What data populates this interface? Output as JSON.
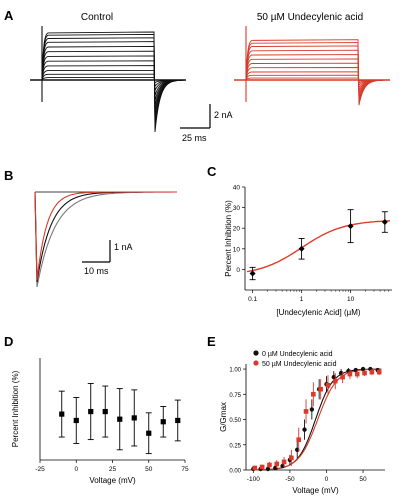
{
  "colors": {
    "control": "#111111",
    "drug": "#d93a2b",
    "fit": "#e03a2a",
    "gray": "#7a7a7a"
  },
  "panels": {
    "A": {
      "letter": "A",
      "control_label": "Control",
      "drug_label": "50 µM Undecylenic acid",
      "scale_y": "2 nA",
      "scale_x": "25 ms",
      "steady_levels_norm": [
        0.05,
        0.12,
        0.2,
        0.3,
        0.4,
        0.5,
        0.6,
        0.7,
        0.8,
        0.88,
        0.95,
        1.0
      ],
      "drug_levels_norm": [
        0.04,
        0.1,
        0.17,
        0.26,
        0.35,
        0.44,
        0.53,
        0.62,
        0.71,
        0.78,
        0.84
      ]
    },
    "B": {
      "letter": "B",
      "scale_y": "1 nA",
      "scale_x": "10 ms"
    },
    "C": {
      "letter": "C",
      "chart_data": {
        "type": "scatter",
        "xlabel": "[Undecylenic Acid] (µM)",
        "ylabel": "Percent Inhibition (%)",
        "xscale": "log",
        "xticks": [
          0.1,
          1,
          10
        ],
        "xtick_labels": [
          "0.1",
          "1",
          "10"
        ],
        "ylim": [
          -10,
          40
        ],
        "yticks": [
          0,
          10,
          20,
          30,
          40
        ],
        "points": [
          {
            "x": 0.1,
            "y": -2,
            "err": 3
          },
          {
            "x": 1,
            "y": 10,
            "err": 5
          },
          {
            "x": 10,
            "y": 21,
            "err": 8
          },
          {
            "x": 50,
            "y": 23,
            "err": 5
          }
        ],
        "fit": {
          "bottom": -3,
          "top": 24,
          "ic50": 1.0,
          "hill": 1
        }
      }
    },
    "D": {
      "letter": "D",
      "chart_data": {
        "type": "scatter",
        "xlabel": "Voltage (mV)",
        "ylabel": "Percent Inhibition (%)",
        "xlim": [
          -25,
          75
        ],
        "xticks": [
          -25,
          0,
          25,
          50,
          75
        ],
        "ylim": [
          0,
          40
        ],
        "points": [
          {
            "x": -10,
            "y": 18,
            "err": 9
          },
          {
            "x": 0,
            "y": 15.5,
            "err": 9
          },
          {
            "x": 10,
            "y": 19,
            "err": 11
          },
          {
            "x": 20,
            "y": 19,
            "err": 10
          },
          {
            "x": 30,
            "y": 16,
            "err": 12
          },
          {
            "x": 40,
            "y": 16.5,
            "err": 11
          },
          {
            "x": 50,
            "y": 10.5,
            "err": 8
          },
          {
            "x": 60,
            "y": 15,
            "err": 6
          },
          {
            "x": 70,
            "y": 15.5,
            "err": 8
          }
        ]
      }
    },
    "E": {
      "letter": "E",
      "chart_data": {
        "type": "scatter",
        "xlabel": "Voltage (mV)",
        "ylabel": "G/Gmax",
        "xlim": [
          -110,
          80
        ],
        "xticks": [
          -100,
          -50,
          0,
          50
        ],
        "ylim": [
          0,
          1.05
        ],
        "yticks": [
          0.0,
          0.25,
          0.5,
          0.75,
          1.0
        ],
        "ytick_labels": [
          "0.00",
          "0.25",
          "0.50",
          "0.75",
          "1.00"
        ],
        "legend_position": "top-left",
        "series": [
          {
            "name": "0 µM Undecylenic acid",
            "color": "#111111",
            "v_half": -15,
            "slope": 12,
            "x": [
              -100,
              -90,
              -80,
              -70,
              -60,
              -50,
              -40,
              -30,
              -20,
              -10,
              0,
              10,
              20,
              30,
              40,
              50,
              60,
              70
            ],
            "y": [
              0.01,
              0.01,
              0.01,
              0.02,
              0.04,
              0.1,
              0.2,
              0.4,
              0.6,
              0.8,
              0.85,
              0.92,
              0.96,
              0.98,
              0.99,
              1.0,
              1.0,
              0.99
            ],
            "err": [
              0.01,
              0.01,
              0.01,
              0.01,
              0.02,
              0.05,
              0.08,
              0.1,
              0.1,
              0.1,
              0.08,
              0.06,
              0.04,
              0.03,
              0.02,
              0.02,
              0.02,
              0.02
            ]
          },
          {
            "name": "50 µM Undecylenic acid",
            "color": "#d93a2b",
            "v_half": -12,
            "slope": 13,
            "x": [
              -100,
              -90,
              -80,
              -70,
              -60,
              -50,
              -40,
              -30,
              -20,
              -10,
              0,
              10,
              20,
              30,
              40,
              50,
              60,
              70
            ],
            "y": [
              0.02,
              0.03,
              0.05,
              0.06,
              0.08,
              0.12,
              0.3,
              0.58,
              0.75,
              0.8,
              0.84,
              0.88,
              0.92,
              0.95,
              0.95,
              0.96,
              0.97,
              0.97
            ],
            "err": [
              0.02,
              0.02,
              0.03,
              0.04,
              0.05,
              0.08,
              0.12,
              0.12,
              0.12,
              0.1,
              0.1,
              0.08,
              0.06,
              0.05,
              0.04,
              0.03,
              0.03,
              0.03
            ]
          }
        ]
      }
    }
  }
}
